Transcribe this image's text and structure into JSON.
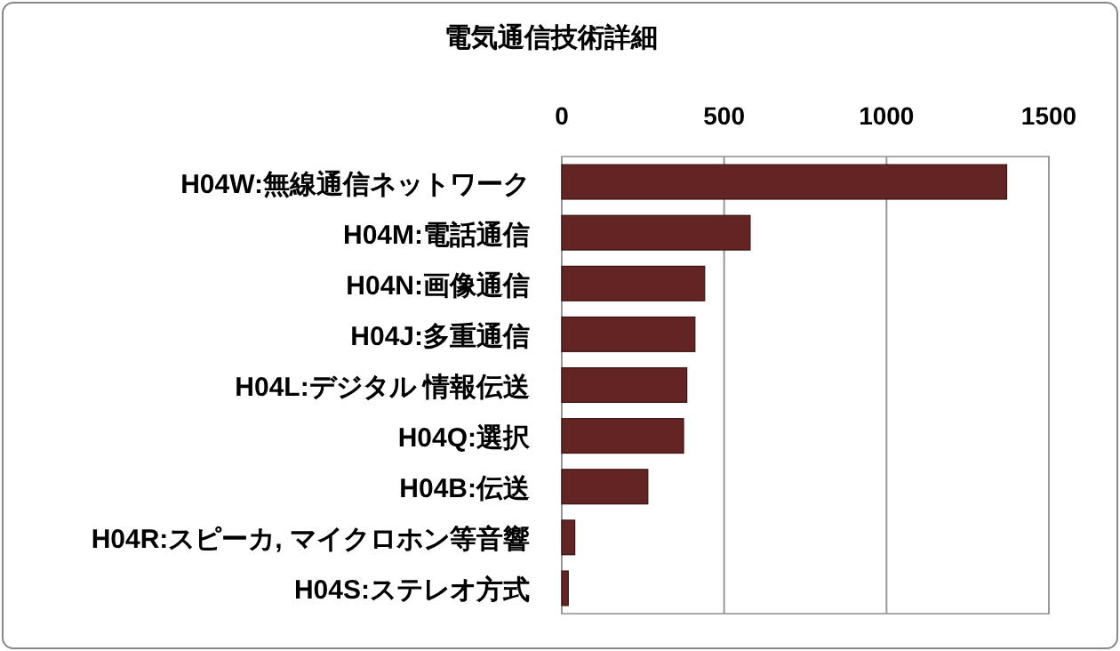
{
  "chart_data": {
    "type": "bar",
    "orientation": "horizontal",
    "title": "電気通信技術詳細",
    "categories": [
      "H04W:無線通信ネットワーク",
      "H04M:電話通信",
      "H04N:画像通信",
      "H04J:多重通信",
      "H04L:デジタル 情報伝送",
      "H04Q:選択",
      "H04B:伝送",
      "H04R:スピーカ, マイクロホン等音響",
      "H04S:ステレオ方式"
    ],
    "values": [
      1370,
      580,
      440,
      410,
      385,
      375,
      265,
      40,
      20
    ],
    "color": "#632523",
    "xlim": [
      0,
      1500
    ],
    "xticks": [
      0,
      500,
      1000,
      1500
    ],
    "grid": "x"
  }
}
